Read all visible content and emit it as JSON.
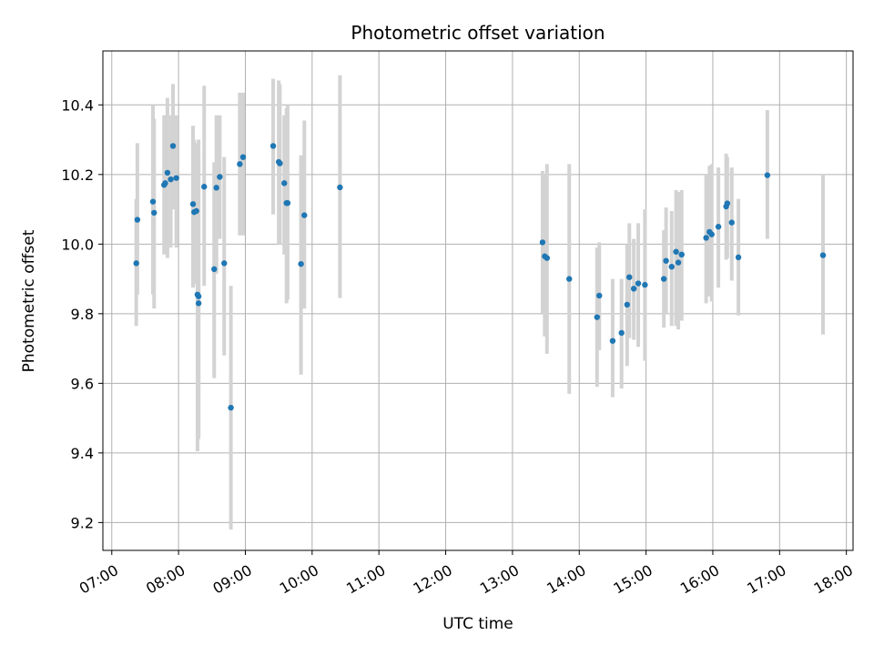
{
  "chart_data": {
    "type": "scatter",
    "title": "Photometric offset variation",
    "xlabel": "UTC time",
    "ylabel": "Photometric offset",
    "x_ticks": [
      "07:00",
      "08:00",
      "09:00",
      "10:00",
      "11:00",
      "12:00",
      "13:00",
      "14:00",
      "15:00",
      "16:00",
      "17:00",
      "18:00"
    ],
    "y_ticks": [
      "9.2",
      "9.4",
      "9.6",
      "9.8",
      "10.0",
      "10.2",
      "10.4"
    ],
    "xlim": [
      "06:52",
      "18:06"
    ],
    "ylim": [
      9.12,
      10.555
    ],
    "grid": true,
    "colors": {
      "point": "#1f77b4",
      "errorbar": "#d3d3d3",
      "grid": "#b0b0b0"
    },
    "series": [
      {
        "x": [
          "07:22",
          "07:23",
          "07:37",
          "07:38",
          "07:47",
          "07:48",
          "07:50",
          "07:53",
          "07:55",
          "07:58",
          "08:13",
          "08:14",
          "08:16",
          "08:17",
          "08:18",
          "08:18",
          "08:23",
          "08:32",
          "08:34",
          "08:37",
          "08:41",
          "08:47",
          "08:55",
          "08:58",
          "09:25",
          "09:30",
          "09:31",
          "09:35",
          "09:37",
          "09:38",
          "09:50",
          "09:53",
          "10:25",
          "13:27",
          "13:29",
          "13:31",
          "13:51",
          "14:16",
          "14:18",
          "14:30",
          "14:38",
          "14:43",
          "14:45",
          "14:49",
          "14:53",
          "14:59",
          "15:16",
          "15:18",
          "15:23",
          "15:27",
          "15:29",
          "15:32",
          "15:54",
          "15:57",
          "15:59",
          "16:05",
          "16:12",
          "16:13",
          "16:17",
          "16:23",
          "16:49",
          "17:39"
        ],
        "y": [
          9.945,
          10.07,
          10.122,
          10.09,
          10.17,
          10.175,
          10.205,
          10.186,
          10.282,
          10.19,
          10.115,
          10.092,
          10.095,
          9.855,
          9.85,
          9.83,
          10.165,
          9.928,
          10.162,
          10.193,
          9.945,
          9.53,
          10.23,
          10.25,
          10.282,
          10.236,
          10.232,
          10.175,
          10.118,
          10.118,
          9.943,
          10.083,
          10.163,
          10.005,
          9.965,
          9.96,
          9.9,
          9.79,
          9.852,
          9.722,
          9.745,
          9.826,
          9.905,
          9.872,
          9.887,
          9.883,
          9.9,
          9.952,
          9.935,
          9.978,
          9.947,
          9.97,
          10.018,
          10.035,
          10.028,
          10.05,
          10.108,
          10.117,
          10.062,
          9.962,
          10.198,
          9.968
        ],
        "yerr_low": [
          9.765,
          9.855,
          9.855,
          9.815,
          9.97,
          9.975,
          9.96,
          9.99,
          10.1,
          9.99,
          9.875,
          9.885,
          9.9,
          9.405,
          9.45,
          9.44,
          9.88,
          9.615,
          9.915,
          10.015,
          9.68,
          9.18,
          10.025,
          10.025,
          10.085,
          10.0,
          10.0,
          9.97,
          9.83,
          9.84,
          9.625,
          9.815,
          9.845,
          9.8,
          9.735,
          9.685,
          9.57,
          9.59,
          9.695,
          9.56,
          9.585,
          9.65,
          9.73,
          9.725,
          9.705,
          9.665,
          9.76,
          9.8,
          9.765,
          9.765,
          9.755,
          9.78,
          9.83,
          9.85,
          9.835,
          9.875,
          9.955,
          9.96,
          9.895,
          9.795,
          10.015,
          9.74
        ],
        "yerr_high": [
          10.13,
          10.29,
          10.4,
          10.36,
          10.37,
          10.37,
          10.42,
          10.37,
          10.46,
          10.37,
          10.34,
          10.3,
          10.29,
          10.29,
          10.3,
          10.25,
          10.455,
          10.235,
          10.37,
          10.37,
          10.25,
          9.88,
          10.435,
          10.435,
          10.475,
          10.47,
          10.46,
          10.37,
          10.39,
          10.4,
          10.255,
          10.355,
          10.485,
          10.21,
          10.2,
          10.23,
          10.23,
          9.99,
          10.005,
          9.9,
          9.9,
          10.0,
          10.06,
          10.015,
          10.06,
          10.1,
          10.04,
          10.105,
          10.095,
          10.155,
          10.15,
          10.155,
          10.2,
          10.225,
          10.23,
          10.22,
          10.26,
          10.25,
          10.22,
          10.13,
          10.385,
          10.2
        ]
      }
    ]
  }
}
